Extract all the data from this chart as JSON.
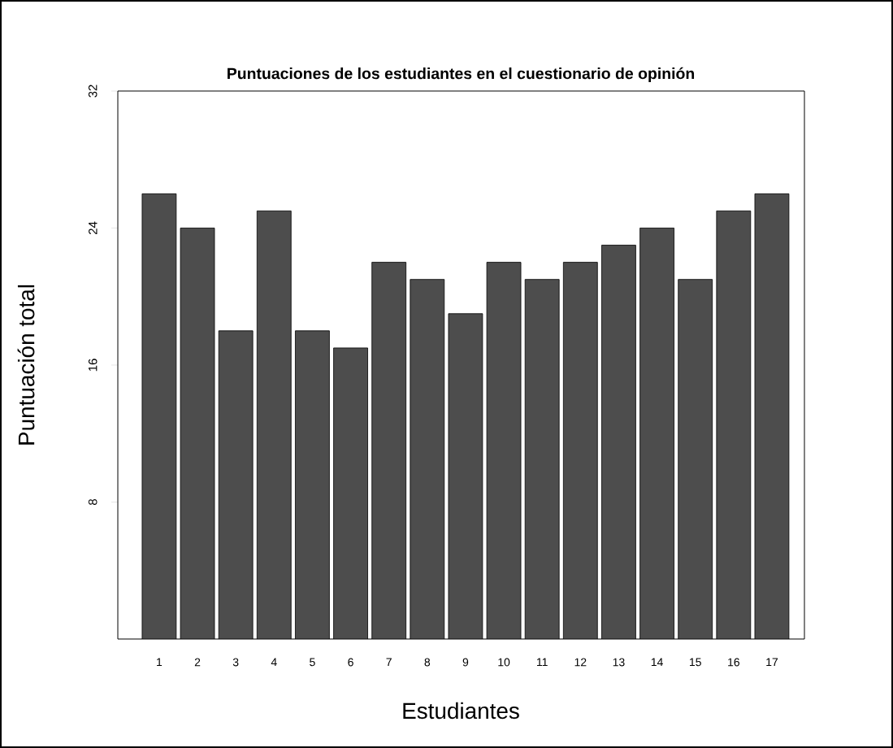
{
  "chart_data": {
    "type": "bar",
    "title": "Puntuaciones de los estudiantes en el cuestionario de opinión",
    "xlabel": "Estudiantes",
    "ylabel": "Puntuación total",
    "categories": [
      "1",
      "2",
      "3",
      "4",
      "5",
      "6",
      "7",
      "8",
      "9",
      "10",
      "11",
      "12",
      "13",
      "14",
      "15",
      "16",
      "17"
    ],
    "values": [
      26,
      24,
      18,
      25,
      18,
      17,
      22,
      21,
      19,
      22,
      21,
      22,
      23,
      24,
      21,
      25,
      26
    ],
    "color": "#4d4d4d",
    "ylim": [
      0,
      32
    ],
    "yticks": [
      8,
      16,
      24,
      32
    ]
  }
}
